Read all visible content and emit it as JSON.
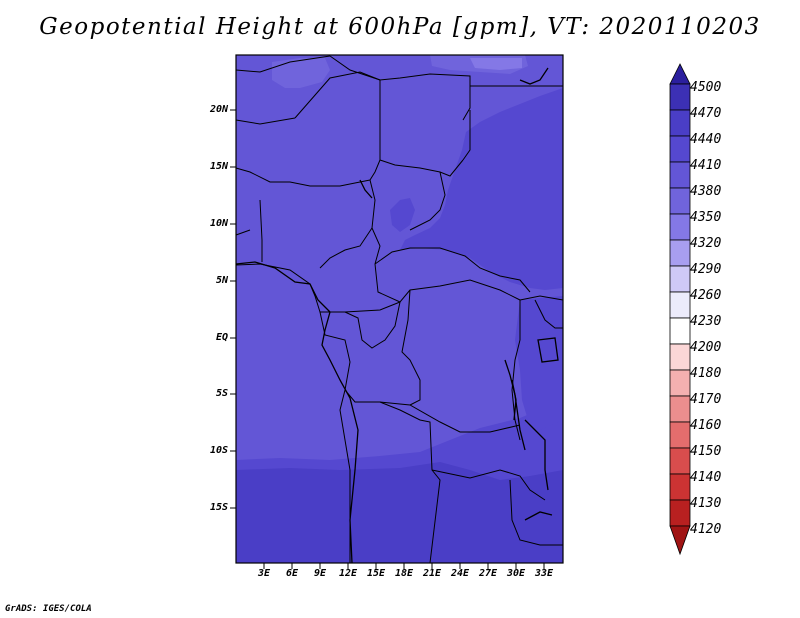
{
  "title": "Geopotential Height at 600hPa [gpm], VT: 2020110203",
  "footer": "GrADS: IGES/COLA",
  "map": {
    "lon_range": [
      0,
      35
    ],
    "lat_range": [
      -20,
      25
    ],
    "lat_ticks": [
      {
        "value": 20,
        "label": "20N"
      },
      {
        "value": 15,
        "label": "15N"
      },
      {
        "value": 10,
        "label": "10N"
      },
      {
        "value": 5,
        "label": "5N"
      },
      {
        "value": 0,
        "label": "EQ"
      },
      {
        "value": -5,
        "label": "5S"
      },
      {
        "value": -10,
        "label": "10S"
      },
      {
        "value": -15,
        "label": "15S"
      }
    ],
    "lon_ticks": [
      {
        "value": 3,
        "label": "3E"
      },
      {
        "value": 6,
        "label": "6E"
      },
      {
        "value": 9,
        "label": "9E"
      },
      {
        "value": 12,
        "label": "12E"
      },
      {
        "value": 15,
        "label": "15E"
      },
      {
        "value": 18,
        "label": "18E"
      },
      {
        "value": 21,
        "label": "21E"
      },
      {
        "value": 24,
        "label": "24E"
      },
      {
        "value": 27,
        "label": "27E"
      },
      {
        "value": 30,
        "label": "30E"
      },
      {
        "value": 33,
        "label": "33E"
      }
    ]
  },
  "colorbar": {
    "levels": [
      "4500",
      "4470",
      "4440",
      "4410",
      "4380",
      "4350",
      "4320",
      "4290",
      "4260",
      "4230",
      "4200",
      "4180",
      "4170",
      "4160",
      "4150",
      "4140",
      "4130",
      "4120"
    ],
    "colors": [
      "#2b1f9e",
      "#3c30b5",
      "#4a3ec6",
      "#5548d0",
      "#6356d6",
      "#7064dc",
      "#8478e6",
      "#a89ef0",
      "#cfc9f7",
      "#ecebfb",
      "#ffffff",
      "#fbd6d6",
      "#f4b0b0",
      "#ec8e8e",
      "#e46d6d",
      "#d94d4d",
      "#cc3333",
      "#b82020",
      "#a01414"
    ]
  },
  "fill_colors": {
    "level_4380": "#6356d6",
    "level_4410": "#5548d0",
    "level_4440": "#4a3ec6",
    "level_4350": "#7064dc"
  }
}
